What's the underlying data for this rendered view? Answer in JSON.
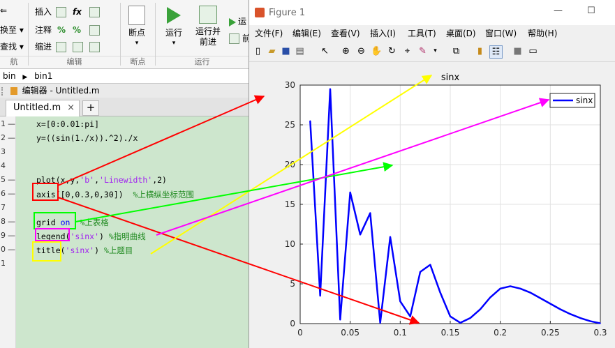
{
  "ribbon": {
    "left_rows": [
      "⇐",
      "换至 ▾",
      "查找 ▾"
    ],
    "insert_label": "插入",
    "comment_label": "注释",
    "indent_label": "缩进",
    "breakpoint_label": "断点",
    "run_label": "运行",
    "run_advance_label": "运行并\n前进",
    "run_section_label": "运",
    "advance_label": "前",
    "groups": {
      "nav": "航",
      "edit": "编辑",
      "breakpoints": "断点",
      "run": "运行"
    }
  },
  "path": {
    "seg1": "bin",
    "seg2": "bin1"
  },
  "editor": {
    "title": "编辑器 - Untitled.m",
    "tab_label": "Untitled.m",
    "tab_close": "×",
    "add_tab": "+",
    "lines": [
      {
        "num": "1",
        "dash": "—",
        "parts": [
          [
            "code",
            "x=[0:0.01:pi]"
          ]
        ]
      },
      {
        "num": "2",
        "dash": "—",
        "parts": [
          [
            "code",
            "y=((sin(1./x)).^2)./x"
          ]
        ]
      },
      {
        "num": "3",
        "dash": "",
        "parts": []
      },
      {
        "num": "4",
        "dash": "",
        "parts": []
      },
      {
        "num": "5",
        "dash": "—",
        "parts": [
          [
            "code",
            "plot(x,y,"
          ],
          [
            "str",
            "'b'"
          ],
          [
            "code",
            ","
          ],
          [
            "str",
            "'Linewidth'"
          ],
          [
            "code",
            ",2)"
          ]
        ]
      },
      {
        "num": "6",
        "dash": "—",
        "parts": [
          [
            "code",
            "axis([0,0.3,0,30])  "
          ],
          [
            "cmt",
            "%上横纵坐标范围"
          ]
        ]
      },
      {
        "num": "7",
        "dash": "",
        "parts": []
      },
      {
        "num": "8",
        "dash": "—",
        "parts": [
          [
            "code",
            "grid "
          ],
          [
            "kw",
            "on"
          ],
          [
            "code",
            "  "
          ],
          [
            "cmt",
            "%上表格"
          ]
        ]
      },
      {
        "num": "9",
        "dash": "—",
        "parts": [
          [
            "code",
            "legend("
          ],
          [
            "str",
            "'sinx'"
          ],
          [
            "code",
            ") "
          ],
          [
            "cmt",
            "%指明曲线"
          ]
        ]
      },
      {
        "num": "0",
        "dash": "—",
        "parts": [
          [
            "code",
            "title("
          ],
          [
            "str",
            "'sinx'"
          ],
          [
            "code",
            ") "
          ],
          [
            "cmt",
            "%上题目"
          ]
        ]
      },
      {
        "num": "1",
        "dash": "",
        "parts": []
      }
    ]
  },
  "figure": {
    "title": "Figure 1",
    "window_controls": [
      "—",
      "☐"
    ],
    "menus": [
      "文件(F)",
      "编辑(E)",
      "查看(V)",
      "插入(I)",
      "工具(T)",
      "桌面(D)",
      "窗口(W)",
      "帮助(H)"
    ],
    "toolbar_icons": [
      "new-figure-icon",
      "open-icon",
      "save-icon",
      "print-icon",
      "pointer-icon",
      "zoom-in-icon",
      "zoom-out-icon",
      "pan-icon",
      "rotate-icon",
      "data-cursor-icon",
      "brush-icon",
      "link-icon",
      "colorbar-icon",
      "legend-icon",
      "hide-tools-icon",
      "dock-icon"
    ]
  },
  "chart_data": {
    "type": "line",
    "title": "sinx",
    "xlabel": "",
    "ylabel": "",
    "xlim": [
      0,
      0.3
    ],
    "ylim": [
      0,
      30
    ],
    "xticks": [
      0,
      0.05,
      0.1,
      0.15,
      0.2,
      0.25,
      0.3
    ],
    "yticks": [
      0,
      5,
      10,
      15,
      20,
      25,
      30
    ],
    "grid": true,
    "legend_position": "top-right",
    "series": [
      {
        "name": "sinx",
        "color": "#0000ff",
        "x": [
          0.01,
          0.02,
          0.03,
          0.04,
          0.05,
          0.06,
          0.07,
          0.08,
          0.09,
          0.1,
          0.11,
          0.12,
          0.13,
          0.14,
          0.15,
          0.16,
          0.17,
          0.18,
          0.19,
          0.2,
          0.21,
          0.22,
          0.23,
          0.24,
          0.25,
          0.26,
          0.27,
          0.28,
          0.29,
          0.3
        ],
        "y": [
          25.5,
          3.5,
          29.5,
          0.5,
          16.5,
          11.2,
          13.9,
          0.1,
          10.9,
          2.8,
          0.9,
          6.5,
          7.4,
          3.9,
          0.9,
          0.1,
          0.7,
          1.8,
          3.3,
          4.4,
          4.7,
          4.4,
          3.9,
          3.2,
          2.5,
          1.8,
          1.2,
          0.7,
          0.3,
          0.04
        ]
      }
    ]
  },
  "annotations": {
    "colors": {
      "red": "#ff0000",
      "yellow": "#ffff00",
      "green": "#00ff00",
      "magenta": "#ff00ff"
    }
  }
}
